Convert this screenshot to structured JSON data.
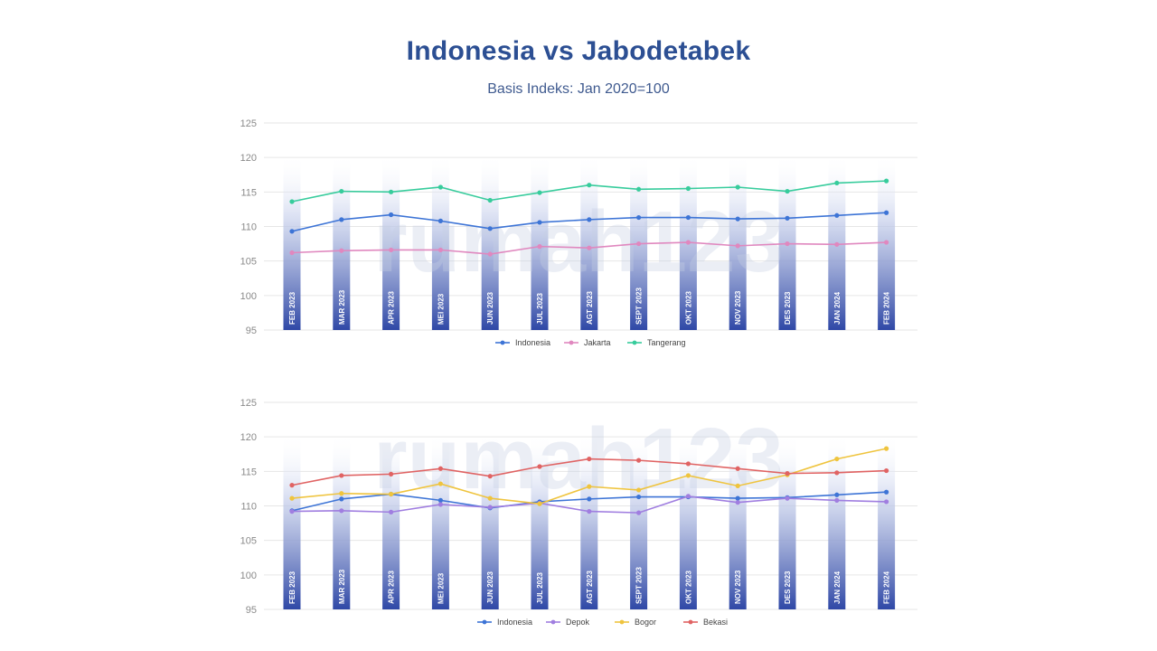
{
  "title": "Indonesia vs Jabodetabek",
  "subtitle": "Basis Indeks: Jan 2020=100",
  "watermark": "rumah123",
  "chart_data": [
    {
      "type": "line",
      "categories": [
        "FEB 2023",
        "MAR 2023",
        "APR 2023",
        "MEI 2023",
        "JUN 2023",
        "JUL 2023",
        "AGT 2023",
        "SEPT 2023",
        "OKT 2023",
        "NOV 2023",
        "DES 2023",
        "JAN 2024",
        "FEB 2024"
      ],
      "ylim": [
        95,
        125
      ],
      "yticks": [
        95,
        100,
        105,
        110,
        115,
        120,
        125
      ],
      "grid": true,
      "legend_position": "bottom",
      "series": [
        {
          "name": "Indonesia",
          "color": "#3d74d6",
          "values": [
            109.3,
            111.0,
            111.7,
            110.8,
            109.7,
            110.6,
            111.0,
            111.3,
            111.3,
            111.1,
            111.2,
            111.6,
            112.0
          ]
        },
        {
          "name": "Jakarta",
          "color": "#e088bf",
          "values": [
            106.2,
            106.5,
            106.6,
            106.6,
            106.0,
            107.1,
            106.9,
            107.5,
            107.7,
            107.2,
            107.5,
            107.4,
            107.7
          ]
        },
        {
          "name": "Tangerang",
          "color": "#37cc9c",
          "values": [
            113.6,
            115.1,
            115.0,
            115.7,
            113.8,
            114.9,
            116.0,
            115.4,
            115.5,
            115.7,
            115.1,
            116.3,
            116.6
          ]
        }
      ]
    },
    {
      "type": "line",
      "categories": [
        "FEB 2023",
        "MAR 2023",
        "APR 2023",
        "MEI 2023",
        "JUN 2023",
        "JUL 2023",
        "AGT 2023",
        "SEPT 2023",
        "OKT 2023",
        "NOV 2023",
        "DES 2023",
        "JAN 2024",
        "FEB 2024"
      ],
      "ylim": [
        95,
        125
      ],
      "yticks": [
        95,
        100,
        105,
        110,
        115,
        120,
        125
      ],
      "grid": true,
      "legend_position": "bottom",
      "series": [
        {
          "name": "Indonesia",
          "color": "#3d74d6",
          "values": [
            109.3,
            111.0,
            111.7,
            110.8,
            109.7,
            110.6,
            111.0,
            111.3,
            111.3,
            111.1,
            111.2,
            111.6,
            112.0
          ]
        },
        {
          "name": "Depok",
          "color": "#a07ee0",
          "values": [
            109.2,
            109.3,
            109.1,
            110.2,
            109.8,
            110.4,
            109.2,
            109.0,
            111.4,
            110.5,
            111.1,
            110.8,
            110.6
          ]
        },
        {
          "name": "Bogor",
          "color": "#efc43e",
          "values": [
            111.1,
            111.8,
            111.7,
            113.2,
            111.1,
            110.3,
            112.8,
            112.3,
            114.4,
            112.9,
            114.5,
            116.8,
            118.3
          ]
        },
        {
          "name": "Bekasi",
          "color": "#e06363",
          "values": [
            113.0,
            114.4,
            114.6,
            115.4,
            114.3,
            115.7,
            116.8,
            116.6,
            116.1,
            115.4,
            114.7,
            114.8,
            115.1
          ]
        }
      ]
    }
  ]
}
